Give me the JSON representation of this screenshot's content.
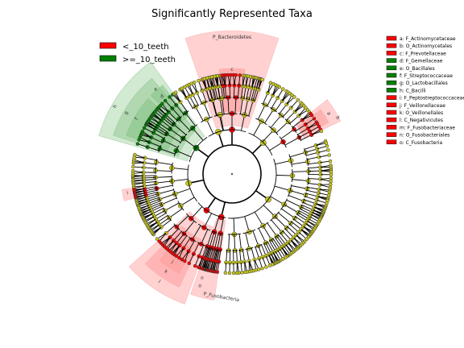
{
  "title": "Significantly Represented Taxa",
  "colors": {
    "group_lt": "#ff0000",
    "group_ge": "#008000",
    "node_neutral": "#c8c81e",
    "shade_red": "#ff9999",
    "shade_green": "#7fbf7f"
  },
  "groups": [
    {
      "label": "<_10_teeth",
      "color": "#ff0000"
    },
    {
      "label": ">=_10_teeth",
      "color": "#008000"
    }
  ],
  "taxa_legend": [
    {
      "label": "a: F_Actinomycetaceae",
      "color": "#ff0000"
    },
    {
      "label": "b: O_Actinomycetales",
      "color": "#ff0000"
    },
    {
      "label": "c: F_Prevotellaceae",
      "color": "#ff0000"
    },
    {
      "label": "d: F_Gemellaceae",
      "color": "#008000"
    },
    {
      "label": "e: O_Bacillales",
      "color": "#008000"
    },
    {
      "label": "f: F_Streptococcaceae",
      "color": "#008000"
    },
    {
      "label": "g: O_Lactobacillales",
      "color": "#008000"
    },
    {
      "label": "h: C_Bacilli",
      "color": "#008000"
    },
    {
      "label": "i: F_Peptostreptococcaceae",
      "color": "#ff0000"
    },
    {
      "label": "j: F_Veillonellaceae",
      "color": "#ff0000"
    },
    {
      "label": "k: O_Veillonellales",
      "color": "#ff0000"
    },
    {
      "label": "l: C_Negativicutes",
      "color": "#ff0000"
    },
    {
      "label": "m: F_Fusobacteriaceae",
      "color": "#ff0000"
    },
    {
      "label": "n: O_Fusobacteriales",
      "color": "#ff0000"
    },
    {
      "label": "o: C_Fusobacteria",
      "color": "#ff0000"
    }
  ],
  "clade_labels": {
    "bacteroidetes": "P_Bacteroidetes",
    "fusobacteria": "P_Fusobacteria",
    "a": "a",
    "b": "b",
    "c": "c",
    "d": "d",
    "e": "e",
    "f": "f",
    "g": "g",
    "h": "h",
    "i": "i",
    "j": "j",
    "k": "k",
    "l": "l",
    "m": "m",
    "n": "n",
    "o": "o"
  }
}
